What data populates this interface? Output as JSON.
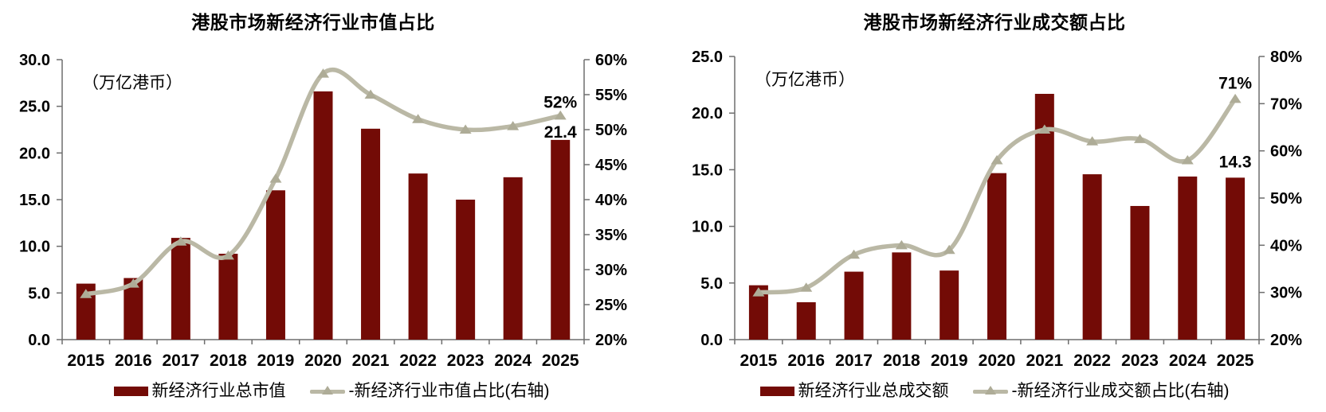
{
  "colors": {
    "bar": "#730B06",
    "line": "#BAB8A5",
    "marker": "#AEAC97",
    "axis": "#6E6E6E",
    "text": "#000000"
  },
  "chart_data": [
    {
      "type": "bar+line",
      "title": "港股市场新经济行业市值占比",
      "unit_label": "（万亿港币）",
      "categories": [
        "2015",
        "2016",
        "2017",
        "2018",
        "2019",
        "2020",
        "2021",
        "2022",
        "2023",
        "2024",
        "2025"
      ],
      "series": [
        {
          "name": "新经济行业总市值",
          "type": "bar",
          "axis": "left",
          "values": [
            6.0,
            6.6,
            10.9,
            9.2,
            16.0,
            26.6,
            22.6,
            17.8,
            15.0,
            17.4,
            21.4
          ]
        },
        {
          "name": "-新经济行业市值占比(右轴)",
          "type": "line",
          "axis": "right",
          "values": [
            26.5,
            28,
            34,
            32,
            43,
            58,
            55,
            51.5,
            50,
            50.5,
            52
          ]
        }
      ],
      "y_left": {
        "min": 0,
        "max": 30,
        "ticks": [
          "0.0",
          "5.0",
          "10.0",
          "15.0",
          "20.0",
          "25.0",
          "30.0"
        ]
      },
      "y_right": {
        "min": 20,
        "max": 60,
        "ticks": [
          "20%",
          "25%",
          "30%",
          "35%",
          "40%",
          "45%",
          "50%",
          "55%",
          "60%"
        ]
      },
      "annotations": [
        {
          "target": "line",
          "index": 10,
          "text": "52%"
        },
        {
          "target": "bar",
          "index": 10,
          "text": "21.4"
        }
      ],
      "legend_position": "bottom",
      "grid": "off"
    },
    {
      "type": "bar+line",
      "title": "港股市场新经济行业成交额占比",
      "unit_label": "（万亿港币）",
      "categories": [
        "2015",
        "2016",
        "2017",
        "2018",
        "2019",
        "2020",
        "2021",
        "2022",
        "2023",
        "2024",
        "2025"
      ],
      "series": [
        {
          "name": "新经济行业总成交额",
          "type": "bar",
          "axis": "left",
          "values": [
            4.8,
            3.3,
            6.0,
            7.7,
            6.1,
            14.7,
            21.7,
            14.6,
            11.8,
            14.4,
            14.3
          ]
        },
        {
          "name": "-新经济行业成交额占比(右轴)",
          "type": "line",
          "axis": "right",
          "values": [
            30,
            31,
            38,
            40,
            39,
            58,
            64.5,
            62,
            62.5,
            58,
            71
          ]
        }
      ],
      "y_left": {
        "min": 0,
        "max": 25,
        "ticks": [
          "0.0",
          "5.0",
          "10.0",
          "15.0",
          "20.0",
          "25.0"
        ]
      },
      "y_right": {
        "min": 20,
        "max": 80,
        "ticks": [
          "20%",
          "30%",
          "40%",
          "50%",
          "60%",
          "70%",
          "80%"
        ]
      },
      "annotations": [
        {
          "target": "line",
          "index": 10,
          "text": "71%"
        },
        {
          "target": "bar",
          "index": 10,
          "text": "14.3"
        }
      ],
      "legend_position": "bottom",
      "grid": "off"
    }
  ]
}
